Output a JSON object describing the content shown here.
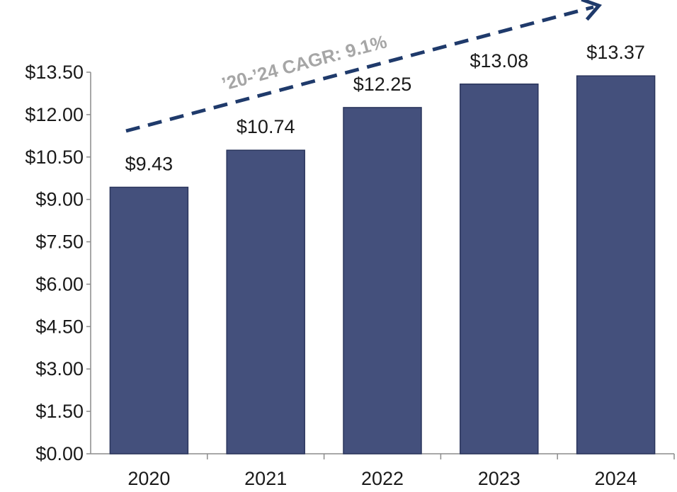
{
  "chart_data": {
    "type": "bar",
    "title": "",
    "xlabel": "",
    "ylabel": "",
    "categories": [
      "2020",
      "2021",
      "2022",
      "2023",
      "2024"
    ],
    "values": [
      9.43,
      10.74,
      12.25,
      13.08,
      13.37
    ],
    "data_labels": [
      "$9.43",
      "$10.74",
      "$12.25",
      "$13.08",
      "$13.37"
    ],
    "ylim": [
      0,
      13.5
    ],
    "y_ticks": [
      0,
      1.5,
      3,
      4.5,
      6,
      7.5,
      9,
      10.5,
      12,
      13.5
    ],
    "y_tick_labels": [
      "$0.00",
      "$1.50",
      "$3.00",
      "$4.50",
      "$6.00",
      "$7.50",
      "$9.00",
      "$10.50",
      "$12.00",
      "$13.50"
    ],
    "grid": false,
    "legend": "none",
    "annotation": {
      "text": "’20-’24 CAGR: 9.1%",
      "style": "dashed-arrow-up"
    },
    "colors": {
      "bar": "#44507c",
      "bar_outline": "#2a355c",
      "arrow": "#1f3a6b",
      "annotation_text": "#a6a6a6",
      "axis": "#8c8c8c"
    }
  }
}
